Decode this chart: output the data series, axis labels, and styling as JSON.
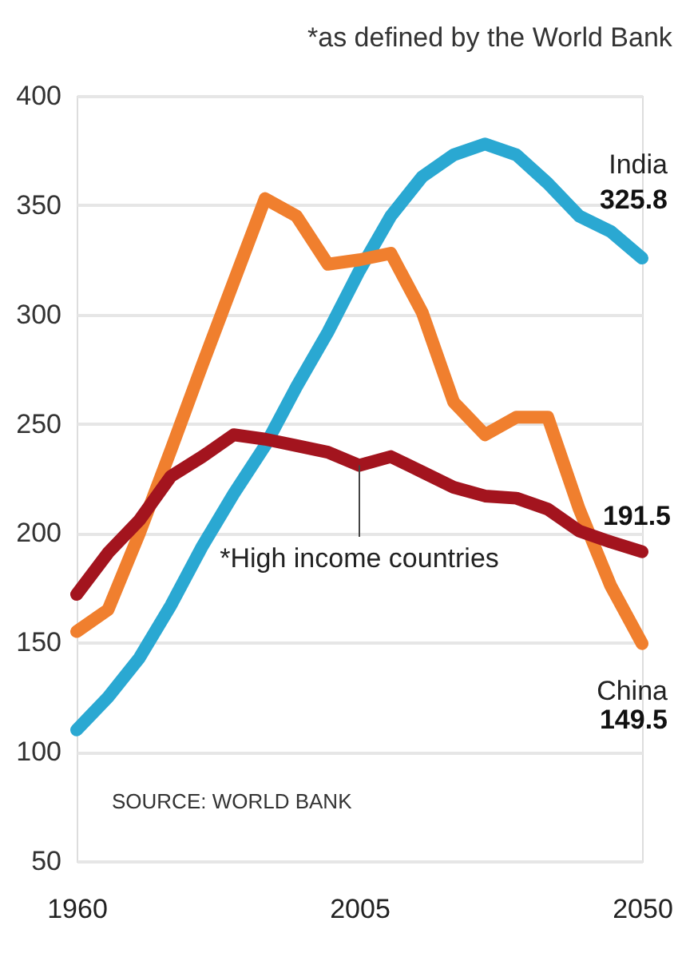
{
  "chart_data": {
    "type": "line",
    "subtitle": "*as defined by the World Bank",
    "x": [
      1960,
      1965,
      1970,
      1975,
      1980,
      1985,
      1990,
      1995,
      2000,
      2005,
      2010,
      2015,
      2020,
      2025,
      2030,
      2035,
      2040,
      2045,
      2050
    ],
    "series": [
      {
        "name": "India",
        "color": "#2aa8d2",
        "values": [
          110,
          125,
          143,
          167,
          194,
          218,
          240,
          267,
          292,
          320,
          345,
          363,
          373,
          378,
          373,
          360,
          345,
          338,
          325.8
        ],
        "value_labels": [
          null,
          null,
          null,
          null,
          null,
          null,
          null,
          null,
          null,
          null,
          null,
          null,
          null,
          null,
          null,
          null,
          null,
          null,
          "325.8"
        ]
      },
      {
        "name": "China",
        "color": "#f07f2e",
        "values": [
          155,
          165,
          200,
          238,
          277,
          315,
          353,
          345,
          323,
          325,
          328,
          301,
          260,
          245,
          253,
          253,
          211,
          176,
          149.5
        ],
        "value_labels": [
          null,
          null,
          null,
          null,
          null,
          null,
          null,
          null,
          null,
          null,
          null,
          null,
          null,
          null,
          null,
          null,
          null,
          null,
          "149.5"
        ]
      },
      {
        "color": "#a3141e",
        "values": [
          172,
          191,
          206,
          226,
          235,
          245,
          243,
          240,
          237,
          231,
          235,
          228,
          221,
          217,
          216,
          211,
          201,
          196,
          191.5
        ],
        "value_labels": [
          null,
          null,
          null,
          null,
          null,
          null,
          null,
          null,
          null,
          null,
          null,
          null,
          null,
          null,
          null,
          null,
          null,
          null,
          "191.5"
        ]
      }
    ],
    "annotations": [
      {
        "text": "*High income countries",
        "x": 2005,
        "y": 231
      },
      "SOURCE: WORLD BANK"
    ],
    "xlim": [
      1960,
      2050
    ],
    "xticks": [
      1960,
      2005,
      2050
    ],
    "ylim": [
      50,
      400
    ],
    "yticks": [
      50,
      100,
      150,
      200,
      250,
      300,
      350,
      400
    ],
    "grid": "y",
    "line_style": "solid"
  }
}
